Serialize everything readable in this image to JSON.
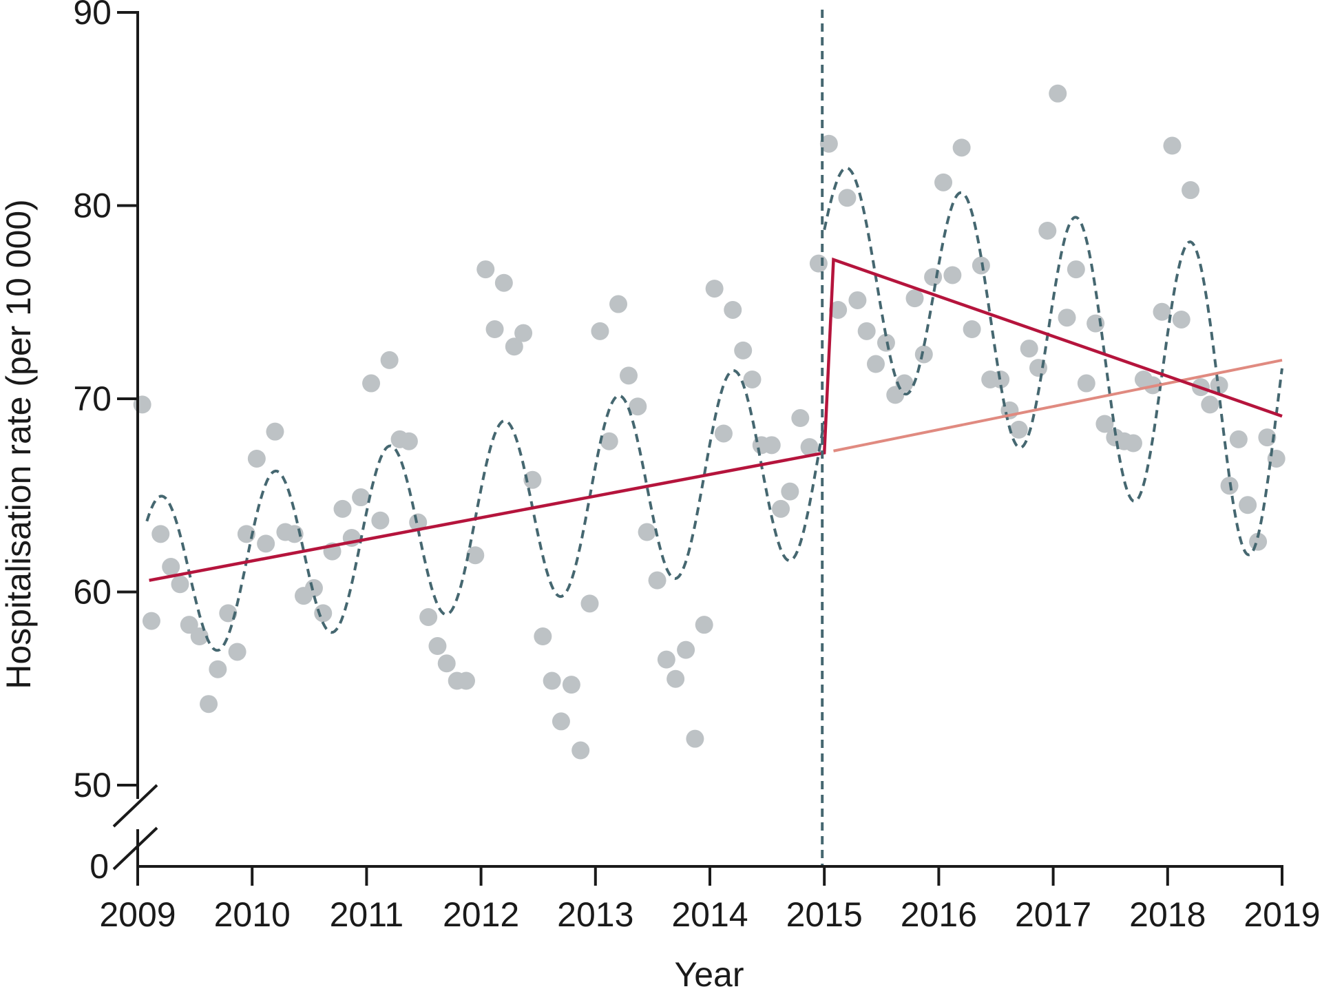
{
  "chart_data": {
    "type": "scatter",
    "title": "",
    "xlabel": "Year",
    "ylabel": "Hospitalisation rate (per 10 000)",
    "xlim": [
      2009,
      2019
    ],
    "ylim": [
      0,
      90
    ],
    "axis_break": {
      "from": 0,
      "to": 50
    },
    "x_ticks": [
      "2009",
      "2010",
      "2011",
      "2012",
      "2013",
      "2014",
      "2015",
      "2016",
      "2017",
      "2018",
      "2019"
    ],
    "y_ticks": [
      "0",
      "50",
      "60",
      "70",
      "80",
      "90"
    ],
    "intervention_year": 2015.0,
    "grid": false,
    "legend": "none",
    "colors": {
      "points": "#bdc2c5",
      "seasonal_fit": "#456770",
      "trend_fit": "#b5143c",
      "counterfactual": "#e08a80",
      "axis": "#1a1a1a"
    },
    "series": [
      {
        "type": "scatter",
        "x": [
          2009.04,
          2009.12,
          2009.2,
          2009.29,
          2009.37,
          2009.45,
          2009.54,
          2009.62,
          2009.7,
          2009.79,
          2009.87,
          2009.95,
          2010.04,
          2010.12,
          2010.2,
          2010.29,
          2010.37,
          2010.45,
          2010.54,
          2010.62,
          2010.7,
          2010.79,
          2010.87,
          2010.95,
          2011.04,
          2011.12,
          2011.2,
          2011.29,
          2011.37,
          2011.45,
          2011.54,
          2011.62,
          2011.7,
          2011.79,
          2011.87,
          2011.95,
          2012.04,
          2012.12,
          2012.2,
          2012.29,
          2012.37,
          2012.45,
          2012.54,
          2012.62,
          2012.7,
          2012.79,
          2012.87,
          2012.95,
          2013.04,
          2013.12,
          2013.2,
          2013.29,
          2013.37,
          2013.45,
          2013.54,
          2013.62,
          2013.7,
          2013.79,
          2013.87,
          2013.95,
          2014.04,
          2014.12,
          2014.2,
          2014.29,
          2014.37,
          2014.45,
          2014.54,
          2014.62,
          2014.7,
          2014.79,
          2014.87,
          2014.95,
          2015.04,
          2015.12,
          2015.2,
          2015.29,
          2015.37,
          2015.45,
          2015.54,
          2015.62,
          2015.7,
          2015.79,
          2015.87,
          2015.95,
          2016.04,
          2016.12,
          2016.2,
          2016.29,
          2016.37,
          2016.45,
          2016.54,
          2016.62,
          2016.7,
          2016.79,
          2016.87,
          2016.95,
          2017.04,
          2017.12,
          2017.2,
          2017.29,
          2017.37,
          2017.45,
          2017.54,
          2017.62,
          2017.7,
          2017.79,
          2017.87,
          2017.95,
          2018.04,
          2018.12,
          2018.2,
          2018.29,
          2018.37,
          2018.45,
          2018.54,
          2018.62,
          2018.7,
          2018.79,
          2018.87,
          2018.95
        ],
        "y": [
          69.7,
          58.5,
          63.0,
          61.3,
          60.4,
          58.3,
          57.7,
          54.2,
          56.0,
          58.9,
          56.9,
          63.0,
          66.9,
          62.5,
          68.3,
          63.1,
          63.0,
          59.8,
          60.2,
          58.9,
          62.1,
          64.3,
          62.8,
          64.9,
          70.8,
          63.7,
          72.0,
          67.9,
          67.8,
          63.6,
          58.7,
          57.2,
          56.3,
          55.4,
          55.4,
          61.9,
          76.7,
          73.6,
          76.0,
          72.7,
          73.4,
          65.8,
          57.7,
          55.4,
          53.3,
          55.2,
          51.8,
          59.4,
          73.5,
          67.8,
          74.9,
          71.2,
          69.6,
          63.1,
          60.6,
          56.5,
          55.5,
          57.0,
          52.4,
          58.3,
          75.7,
          68.2,
          74.6,
          72.5,
          71.0,
          67.6,
          67.6,
          64.3,
          65.2,
          69.0,
          67.5,
          77.0,
          83.2,
          74.6,
          80.4,
          75.1,
          73.5,
          71.8,
          72.9,
          70.2,
          70.8,
          75.2,
          72.3,
          76.3,
          81.2,
          76.4,
          83.0,
          73.6,
          76.9,
          71.0,
          71.0,
          69.4,
          68.4,
          72.6,
          71.6,
          78.7,
          85.8,
          74.2,
          76.7,
          70.8,
          73.9,
          68.7,
          68.0,
          67.8,
          67.7,
          71.0,
          70.7,
          74.5,
          83.1,
          74.1,
          80.8,
          70.6,
          69.7,
          70.7,
          65.5,
          67.9,
          64.5,
          62.6,
          68.0,
          66.9
        ]
      },
      {
        "type": "line",
        "style": "dashed",
        "segments": [
          {
            "x0": 2009.08,
            "x1": 2015.0,
            "base_at_x0": 60.6,
            "base_at_x1": 67.2,
            "amplitude": [
              4.2,
              5.3
            ],
            "period": 1.0,
            "peak_offset": 0.2
          },
          {
            "x0": 2015.0,
            "x1": 2019.0,
            "base_at_x0": 77.2,
            "base_at_x1": 69.1,
            "amplitude": [
              5.0,
              8.0
            ],
            "period": 1.0,
            "peak_offset": 0.2
          }
        ]
      },
      {
        "type": "line",
        "style": "solid",
        "x": [
          2009.1,
          2015.0,
          2015.08,
          2019.0
        ],
        "y": [
          60.6,
          67.2,
          77.2,
          69.1
        ]
      },
      {
        "type": "line",
        "style": "solid",
        "x": [
          2015.08,
          2019.0
        ],
        "y": [
          67.3,
          72.0
        ]
      }
    ]
  }
}
